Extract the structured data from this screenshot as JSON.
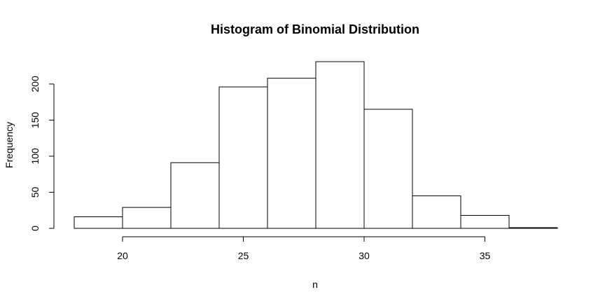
{
  "chart_data": {
    "type": "bar",
    "title": "Histogram of Binomial Distribution",
    "xlabel": "n",
    "ylabel": "Frequency",
    "bins": [
      {
        "start": 18,
        "end": 20,
        "count": 16
      },
      {
        "start": 20,
        "end": 22,
        "count": 29
      },
      {
        "start": 22,
        "end": 24,
        "count": 91
      },
      {
        "start": 24,
        "end": 26,
        "count": 196
      },
      {
        "start": 26,
        "end": 28,
        "count": 208
      },
      {
        "start": 28,
        "end": 30,
        "count": 231
      },
      {
        "start": 30,
        "end": 32,
        "count": 165
      },
      {
        "start": 32,
        "end": 34,
        "count": 45
      },
      {
        "start": 34,
        "end": 36,
        "count": 18
      },
      {
        "start": 36,
        "end": 38,
        "count": 1
      }
    ],
    "xticks": [
      "20",
      "25",
      "30",
      "35"
    ],
    "yticks": [
      "0",
      "50",
      "100",
      "150",
      "200"
    ],
    "xlim": [
      18,
      38
    ],
    "ylim": [
      0,
      231
    ],
    "grid": false,
    "bar_color": "#ffffff",
    "edge_color": "#000000"
  }
}
